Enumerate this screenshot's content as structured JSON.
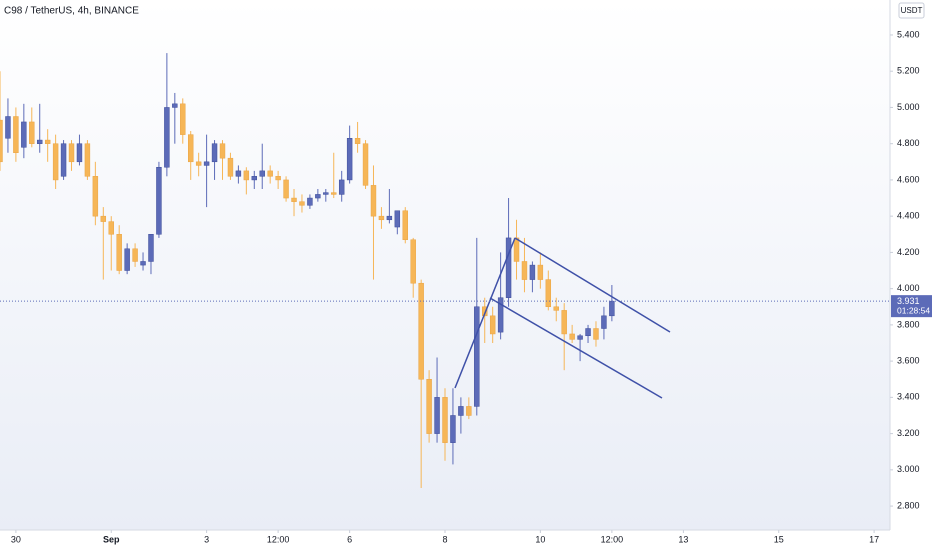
{
  "chart_data": {
    "type": "candlestick",
    "title": "C98 / TetherUS, 4h, BINANCE",
    "currency": "USDT",
    "countdown": "01:28:54",
    "last_price": {
      "value": 3.931,
      "label": "3.931"
    },
    "up_color": "#5c6bb8",
    "down_color": "#f6b657",
    "grid": false,
    "x": [
      -2,
      -1,
      0,
      1,
      2,
      3,
      4,
      5,
      6,
      7,
      8,
      9,
      10,
      11,
      12,
      13,
      14,
      15,
      16,
      17,
      18,
      19,
      20,
      21,
      22,
      23,
      24,
      25,
      26,
      27,
      28,
      29,
      30,
      31,
      32,
      33,
      34,
      35,
      36,
      37,
      38,
      39,
      40,
      41,
      42,
      43,
      44,
      45,
      46,
      47,
      48,
      49,
      50,
      51,
      52,
      53,
      54,
      55,
      56,
      57,
      58,
      59,
      60,
      61,
      62,
      63,
      64,
      65,
      66,
      67,
      68,
      69,
      70,
      71,
      72,
      73,
      74,
      75
    ],
    "open": [
      4.93,
      4.83,
      4.95,
      4.78,
      4.92,
      4.8,
      4.82,
      4.8,
      4.62,
      4.8,
      4.7,
      4.8,
      4.62,
      4.4,
      4.37,
      4.3,
      4.1,
      4.22,
      4.13,
      4.15,
      4.3,
      4.67,
      5.0,
      5.02,
      4.85,
      4.7,
      4.68,
      4.7,
      4.8,
      4.72,
      4.62,
      4.65,
      4.6,
      4.62,
      4.65,
      4.62,
      4.6,
      4.5,
      4.48,
      4.46,
      4.5,
      4.52,
      4.53,
      4.52,
      4.6,
      4.83,
      4.8,
      4.57,
      4.4,
      4.38,
      4.34,
      4.43,
      4.27,
      4.03,
      3.5,
      3.2,
      3.4,
      3.15,
      3.3,
      3.35,
      3.35,
      3.9,
      3.85,
      3.76,
      3.95,
      4.28,
      4.15,
      4.05,
      4.13,
      4.05,
      3.9,
      3.88,
      3.75,
      3.72,
      3.74,
      3.78,
      3.78,
      3.85
    ],
    "high": [
      5.2,
      5.05,
      5.0,
      5.02,
      5.0,
      5.02,
      4.88,
      4.85,
      4.82,
      4.82,
      4.85,
      4.82,
      4.7,
      4.45,
      4.4,
      4.35,
      4.25,
      4.25,
      4.2,
      4.3,
      4.7,
      5.3,
      5.08,
      5.05,
      4.87,
      4.75,
      4.85,
      4.82,
      4.82,
      4.75,
      4.68,
      4.67,
      4.65,
      4.8,
      4.68,
      4.65,
      4.62,
      4.55,
      4.52,
      4.52,
      4.55,
      4.55,
      4.75,
      4.65,
      4.9,
      4.92,
      4.82,
      4.68,
      4.45,
      4.55,
      4.43,
      4.45,
      4.28,
      4.05,
      3.55,
      3.62,
      3.45,
      3.45,
      3.4,
      3.4,
      4.28,
      3.95,
      3.9,
      4.2,
      4.5,
      4.38,
      4.28,
      4.15,
      4.2,
      4.1,
      3.95,
      3.92,
      3.8,
      3.75,
      3.8,
      3.82,
      3.9,
      4.02
    ],
    "low": [
      4.65,
      4.75,
      4.7,
      4.72,
      4.78,
      4.75,
      4.7,
      4.55,
      4.6,
      4.65,
      4.68,
      4.6,
      4.35,
      4.05,
      4.1,
      4.08,
      4.08,
      4.12,
      4.1,
      4.08,
      4.28,
      4.62,
      4.8,
      4.8,
      4.6,
      4.62,
      4.45,
      4.6,
      4.6,
      4.6,
      4.58,
      4.52,
      4.55,
      4.55,
      4.58,
      4.55,
      4.48,
      4.4,
      4.42,
      4.44,
      4.48,
      4.48,
      4.5,
      4.48,
      4.58,
      4.75,
      4.55,
      4.05,
      4.33,
      4.36,
      4.3,
      4.25,
      3.95,
      2.9,
      3.15,
      3.15,
      3.05,
      3.03,
      3.2,
      3.28,
      3.3,
      3.7,
      3.7,
      3.72,
      3.9,
      4.05,
      3.98,
      3.98,
      4.0,
      3.88,
      3.82,
      3.55,
      3.7,
      3.6,
      3.7,
      3.68,
      3.72,
      3.82
    ],
    "close": [
      4.7,
      4.95,
      4.75,
      4.92,
      4.8,
      4.82,
      4.8,
      4.6,
      4.8,
      4.7,
      4.8,
      4.62,
      4.4,
      4.37,
      4.3,
      4.1,
      4.22,
      4.15,
      4.15,
      4.3,
      4.67,
      5.0,
      5.02,
      4.85,
      4.7,
      4.68,
      4.7,
      4.8,
      4.72,
      4.62,
      4.65,
      4.6,
      4.62,
      4.65,
      4.62,
      4.6,
      4.5,
      4.48,
      4.46,
      4.5,
      4.52,
      4.53,
      4.52,
      4.6,
      4.83,
      4.8,
      4.57,
      4.4,
      4.38,
      4.4,
      4.43,
      4.27,
      4.03,
      3.5,
      3.2,
      3.4,
      3.15,
      3.3,
      3.35,
      3.3,
      3.9,
      3.85,
      3.75,
      3.95,
      4.28,
      4.15,
      4.05,
      4.13,
      4.05,
      3.9,
      3.88,
      3.75,
      3.72,
      3.74,
      3.78,
      3.72,
      3.85,
      3.931
    ],
    "xlim": [
      -2,
      110
    ],
    "xticks": [
      {
        "value": 0,
        "label": "30"
      },
      {
        "value": 12,
        "label": "Sep"
      },
      {
        "value": 24,
        "label": "3"
      },
      {
        "value": 33,
        "label": "12:00"
      },
      {
        "value": 42,
        "label": "6"
      },
      {
        "value": 54,
        "label": "8"
      },
      {
        "value": 66,
        "label": "10"
      },
      {
        "value": 75,
        "label": "12:00"
      },
      {
        "value": 84,
        "label": "13"
      },
      {
        "value": 96,
        "label": "15"
      },
      {
        "value": 108,
        "label": "17"
      }
    ],
    "ylim": [
      2.668,
      5.593
    ],
    "yticks": [
      {
        "value": 2.8,
        "label": "2.800"
      },
      {
        "value": 3.0,
        "label": "3.000"
      },
      {
        "value": 3.2,
        "label": "3.200"
      },
      {
        "value": 3.4,
        "label": "3.400"
      },
      {
        "value": 3.6,
        "label": "3.600"
      },
      {
        "value": 3.8,
        "label": "3.800"
      },
      {
        "value": 4.0,
        "label": "4.000"
      },
      {
        "value": 4.2,
        "label": "4.200"
      },
      {
        "value": 4.4,
        "label": "4.400"
      },
      {
        "value": 4.6,
        "label": "4.600"
      },
      {
        "value": 4.8,
        "label": "4.800"
      },
      {
        "value": 5.0,
        "label": "5.000"
      },
      {
        "value": 5.2,
        "label": "5.200"
      },
      {
        "value": 5.4,
        "label": "5.400"
      }
    ]
  }
}
